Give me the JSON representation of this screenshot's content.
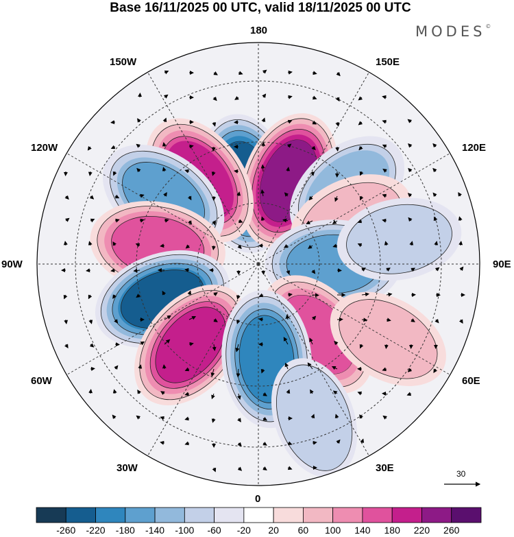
{
  "title": "Base 16/11/2025 00 UTC, valid 18/11/2025 00 UTC",
  "brand": "MODES",
  "brand_mark": "©",
  "longitude_labels": {
    "lon_180": "180",
    "lon_150e": "150E",
    "lon_120e": "120E",
    "lon_90e": "90E",
    "lon_60e": "60E",
    "lon_30e": "30E",
    "lon_0": "0",
    "lon_30w": "30W",
    "lon_60w": "60W",
    "lon_90w": "90W",
    "lon_120w": "120W",
    "lon_150w": "150W"
  },
  "reference_vector_label": "30",
  "colorbar": {
    "ticks": [
      "-260",
      "-220",
      "-180",
      "-140",
      "-100",
      "-60",
      "-20",
      "20",
      "60",
      "100",
      "140",
      "180",
      "220",
      "260"
    ],
    "colors": [
      "#173a55",
      "#155d8f",
      "#2f86bd",
      "#5ea0cf",
      "#92b9dc",
      "#c3d0e8",
      "#e4e4f1",
      "#ffffff",
      "#f8dcdc",
      "#f2b8c3",
      "#ee8db1",
      "#e0529d",
      "#c41f8c",
      "#8d1a86",
      "#5a0f6e"
    ]
  },
  "anomaly_centers": [
    {
      "lon": -170,
      "colat": 24,
      "value": -240
    },
    {
      "lon": 160,
      "colat": 26,
      "value": 240
    },
    {
      "lon": -145,
      "colat": 30,
      "value": 190
    },
    {
      "lon": -125,
      "colat": 34,
      "value": -150
    },
    {
      "lon": 130,
      "colat": 34,
      "value": -110
    },
    {
      "lon": 115,
      "colat": 30,
      "value": 90
    },
    {
      "lon": -100,
      "colat": 30,
      "value": 170
    },
    {
      "lon": 90,
      "colat": 22,
      "value": -170
    },
    {
      "lon": 100,
      "colat": 42,
      "value": -70
    },
    {
      "lon": -70,
      "colat": 30,
      "value": -220
    },
    {
      "lon": -40,
      "colat": 31,
      "value": 200
    },
    {
      "lon": 40,
      "colat": 27,
      "value": 160
    },
    {
      "lon": 60,
      "colat": 44,
      "value": 70
    },
    {
      "lon": 5,
      "colat": 28,
      "value": -200
    },
    {
      "lon": 20,
      "colat": 48,
      "value": -60
    }
  ]
}
